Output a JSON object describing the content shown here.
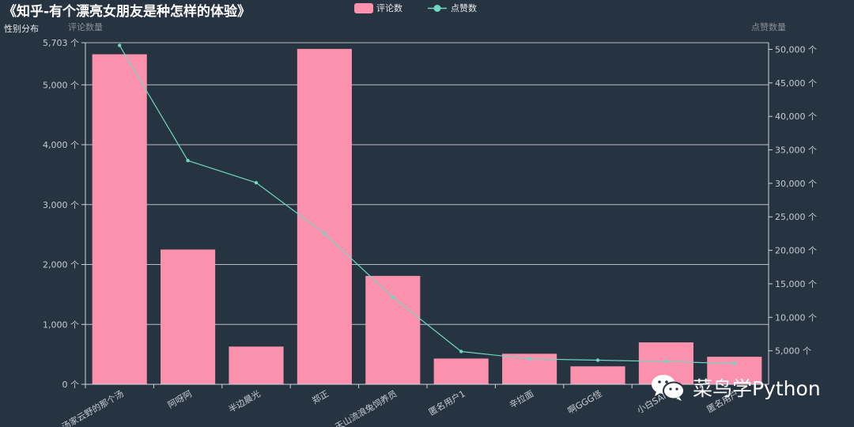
{
  "chart_data": {
    "type": "bar",
    "title": "《知乎-有个漂亮女朋友是种怎样的体验》",
    "subtitle": "性别分布",
    "categories": [
      "汤家云野的那个汤",
      "阿呀阿",
      "半边晨光",
      "郑正",
      "天山流浪兔饲养员",
      "匿名用户1",
      "辛拉面",
      "啊GGG怪",
      "小白SAM",
      "匿名用户"
    ],
    "legend": {
      "position": "top-center",
      "items": [
        "评论数",
        "点赞数"
      ]
    },
    "y_left": {
      "label": "评论数量",
      "min": 0,
      "max": 5703,
      "ticks": [
        0,
        1000,
        2000,
        3000,
        4000,
        5000,
        5703
      ],
      "tick_labels": [
        "0 个",
        "1,000 个",
        "2,000 个",
        "3,000 个",
        "4,000 个",
        "5,000 个",
        "5,703 个"
      ]
    },
    "y_right": {
      "label": "点赞数量",
      "min": 0,
      "max": 51000,
      "ticks": [
        5000,
        10000,
        15000,
        20000,
        25000,
        30000,
        35000,
        40000,
        45000,
        50000
      ],
      "tick_labels": [
        "5,000 个",
        "10,000 个",
        "15,000 个",
        "20,000 个",
        "25,000 个",
        "30,000 个",
        "35,000 个",
        "40,000 个",
        "45,000 个",
        "50,000 个"
      ]
    },
    "series": [
      {
        "name": "评论数",
        "type": "bar",
        "axis": "left",
        "color": "#fb91ad",
        "values": [
          5510,
          2250,
          630,
          5600,
          1810,
          430,
          510,
          300,
          700,
          460
        ]
      },
      {
        "name": "点赞数",
        "type": "line",
        "axis": "right",
        "color": "#6fd8c1",
        "values": [
          50600,
          33400,
          30100,
          22500,
          13000,
          4900,
          3800,
          3600,
          3400,
          3100
        ]
      }
    ],
    "grid": true
  },
  "watermark": {
    "text": "菜鸟学Python"
  }
}
